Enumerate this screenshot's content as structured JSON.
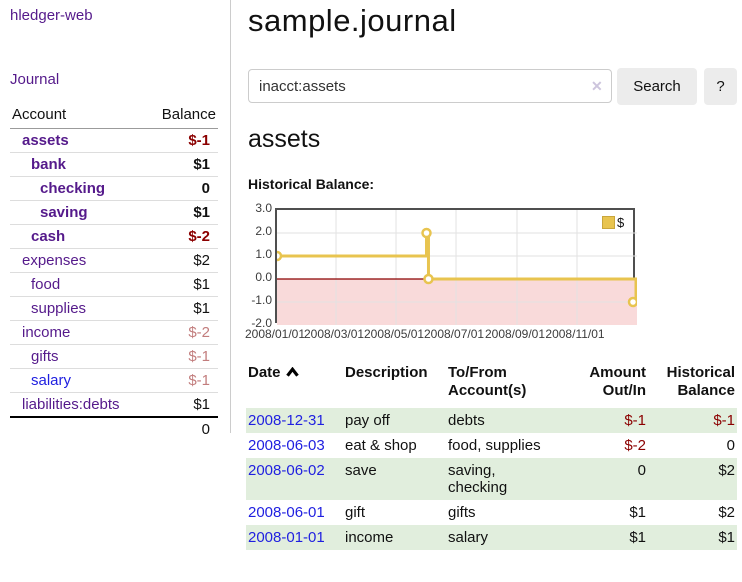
{
  "app": {
    "title": "hledger-web"
  },
  "sidebar": {
    "journal_link": "Journal",
    "accounts": {
      "headers": {
        "account": "Account",
        "balance": "Balance"
      },
      "rows": [
        {
          "name": "assets",
          "balance": "$-1",
          "indent": 1,
          "bold": true,
          "balance_tone": "neg-strong",
          "link": "visited"
        },
        {
          "name": "bank",
          "balance": "$1",
          "indent": 2,
          "bold": true,
          "balance_tone": "pos",
          "link": "visited"
        },
        {
          "name": "checking",
          "balance": "0",
          "indent": 3,
          "bold": true,
          "balance_tone": "pos",
          "link": "visited"
        },
        {
          "name": "saving",
          "balance": "$1",
          "indent": 3,
          "bold": true,
          "balance_tone": "pos",
          "link": "visited"
        },
        {
          "name": "cash",
          "balance": "$-2",
          "indent": 2,
          "bold": true,
          "balance_tone": "neg-strong",
          "link": "visited"
        },
        {
          "name": "expenses",
          "balance": "$2",
          "indent": 1,
          "bold": false,
          "balance_tone": "pos",
          "link": "visited"
        },
        {
          "name": "food",
          "balance": "$1",
          "indent": 2,
          "bold": false,
          "balance_tone": "pos",
          "link": "visited"
        },
        {
          "name": "supplies",
          "balance": "$1",
          "indent": 2,
          "bold": false,
          "balance_tone": "pos",
          "link": "visited"
        },
        {
          "name": "income",
          "balance": "$-2",
          "indent": 1,
          "bold": false,
          "balance_tone": "neg-muted",
          "link": "visited"
        },
        {
          "name": "gifts",
          "balance": "$-1",
          "indent": 2,
          "bold": false,
          "balance_tone": "neg-muted",
          "link": "visited"
        },
        {
          "name": "salary",
          "balance": "$-1",
          "indent": 2,
          "bold": false,
          "balance_tone": "neg-muted",
          "link": "unvisited"
        },
        {
          "name": "liabilities:debts",
          "balance": "$1",
          "indent": 1,
          "bold": false,
          "balance_tone": "pos",
          "link": "visited"
        }
      ],
      "total": "0"
    }
  },
  "main": {
    "title": "sample.journal",
    "search": {
      "value": "inacct:assets",
      "clear_icon": "✕",
      "search_label": "Search",
      "help_label": "?"
    },
    "account_heading": "assets"
  },
  "chart_data": {
    "type": "line",
    "title": "Historical Balance:",
    "line_style": "step-after",
    "xrange": [
      "2008-01-01",
      "2009-01-01"
    ],
    "ylim": [
      -2,
      3
    ],
    "yticks": [
      "3.0",
      "2.0",
      "1.0",
      "0.0",
      "-1.0",
      "-2.0"
    ],
    "xticks": [
      "2008/01/01",
      "2008/03/01",
      "2008/05/01",
      "2008/07/01",
      "2008/09/01",
      "2008/11/01"
    ],
    "grid": true,
    "legend": {
      "position": "top-right",
      "entries": [
        {
          "label": "$",
          "color": "#e8c44f"
        }
      ]
    },
    "series": [
      {
        "name": "$",
        "color": "#e8c44f",
        "points": [
          {
            "x": "2008-01-01",
            "y": 1
          },
          {
            "x": "2008-06-01",
            "y": 2
          },
          {
            "x": "2008-06-03",
            "y": 0
          },
          {
            "x": "2008-12-31",
            "y": -1
          }
        ]
      }
    ],
    "negative_region_fill": "#f9dada",
    "zero_line_color": "#8b0000"
  },
  "register": {
    "headers": {
      "date": "Date",
      "date_sort": "ascending",
      "description": "Description",
      "account": "To/From Account(s)",
      "amount": "Amount Out/In",
      "balance": "Historical Balance"
    },
    "rows": [
      {
        "date": "2008-12-31",
        "description": "pay off",
        "accounts": "debts",
        "amount": "$-1",
        "amount_tone": "neg-strong",
        "balance": "$-1",
        "balance_tone": "neg-strong",
        "highlight": true
      },
      {
        "date": "2008-06-03",
        "description": "eat & shop",
        "accounts": "food, supplies",
        "amount": "$-2",
        "amount_tone": "neg-strong",
        "balance": "0",
        "balance_tone": "pos",
        "highlight": false
      },
      {
        "date": "2008-06-02",
        "description": "save",
        "accounts": "saving, checking",
        "amount": "0",
        "amount_tone": "pos",
        "balance": "$2",
        "balance_tone": "pos",
        "highlight": true
      },
      {
        "date": "2008-06-01",
        "description": "gift",
        "accounts": "gifts",
        "amount": "$1",
        "amount_tone": "pos",
        "balance": "$2",
        "balance_tone": "pos",
        "highlight": false
      },
      {
        "date": "2008-01-01",
        "description": "income",
        "accounts": "salary",
        "amount": "$1",
        "amount_tone": "pos",
        "balance": "$1",
        "balance_tone": "pos",
        "highlight": true
      }
    ]
  },
  "colors": {
    "visited_link": "#551a8b",
    "unvisited_link": "#1f1fe0",
    "negative_strong": "#8b0000",
    "negative_muted": "#c27d7d",
    "row_highlight": "#e1eedd",
    "chart_line": "#e8c44f",
    "chart_negative_fill": "#f9dada",
    "zero_line": "#8b0000",
    "button_bg": "#ececec"
  }
}
